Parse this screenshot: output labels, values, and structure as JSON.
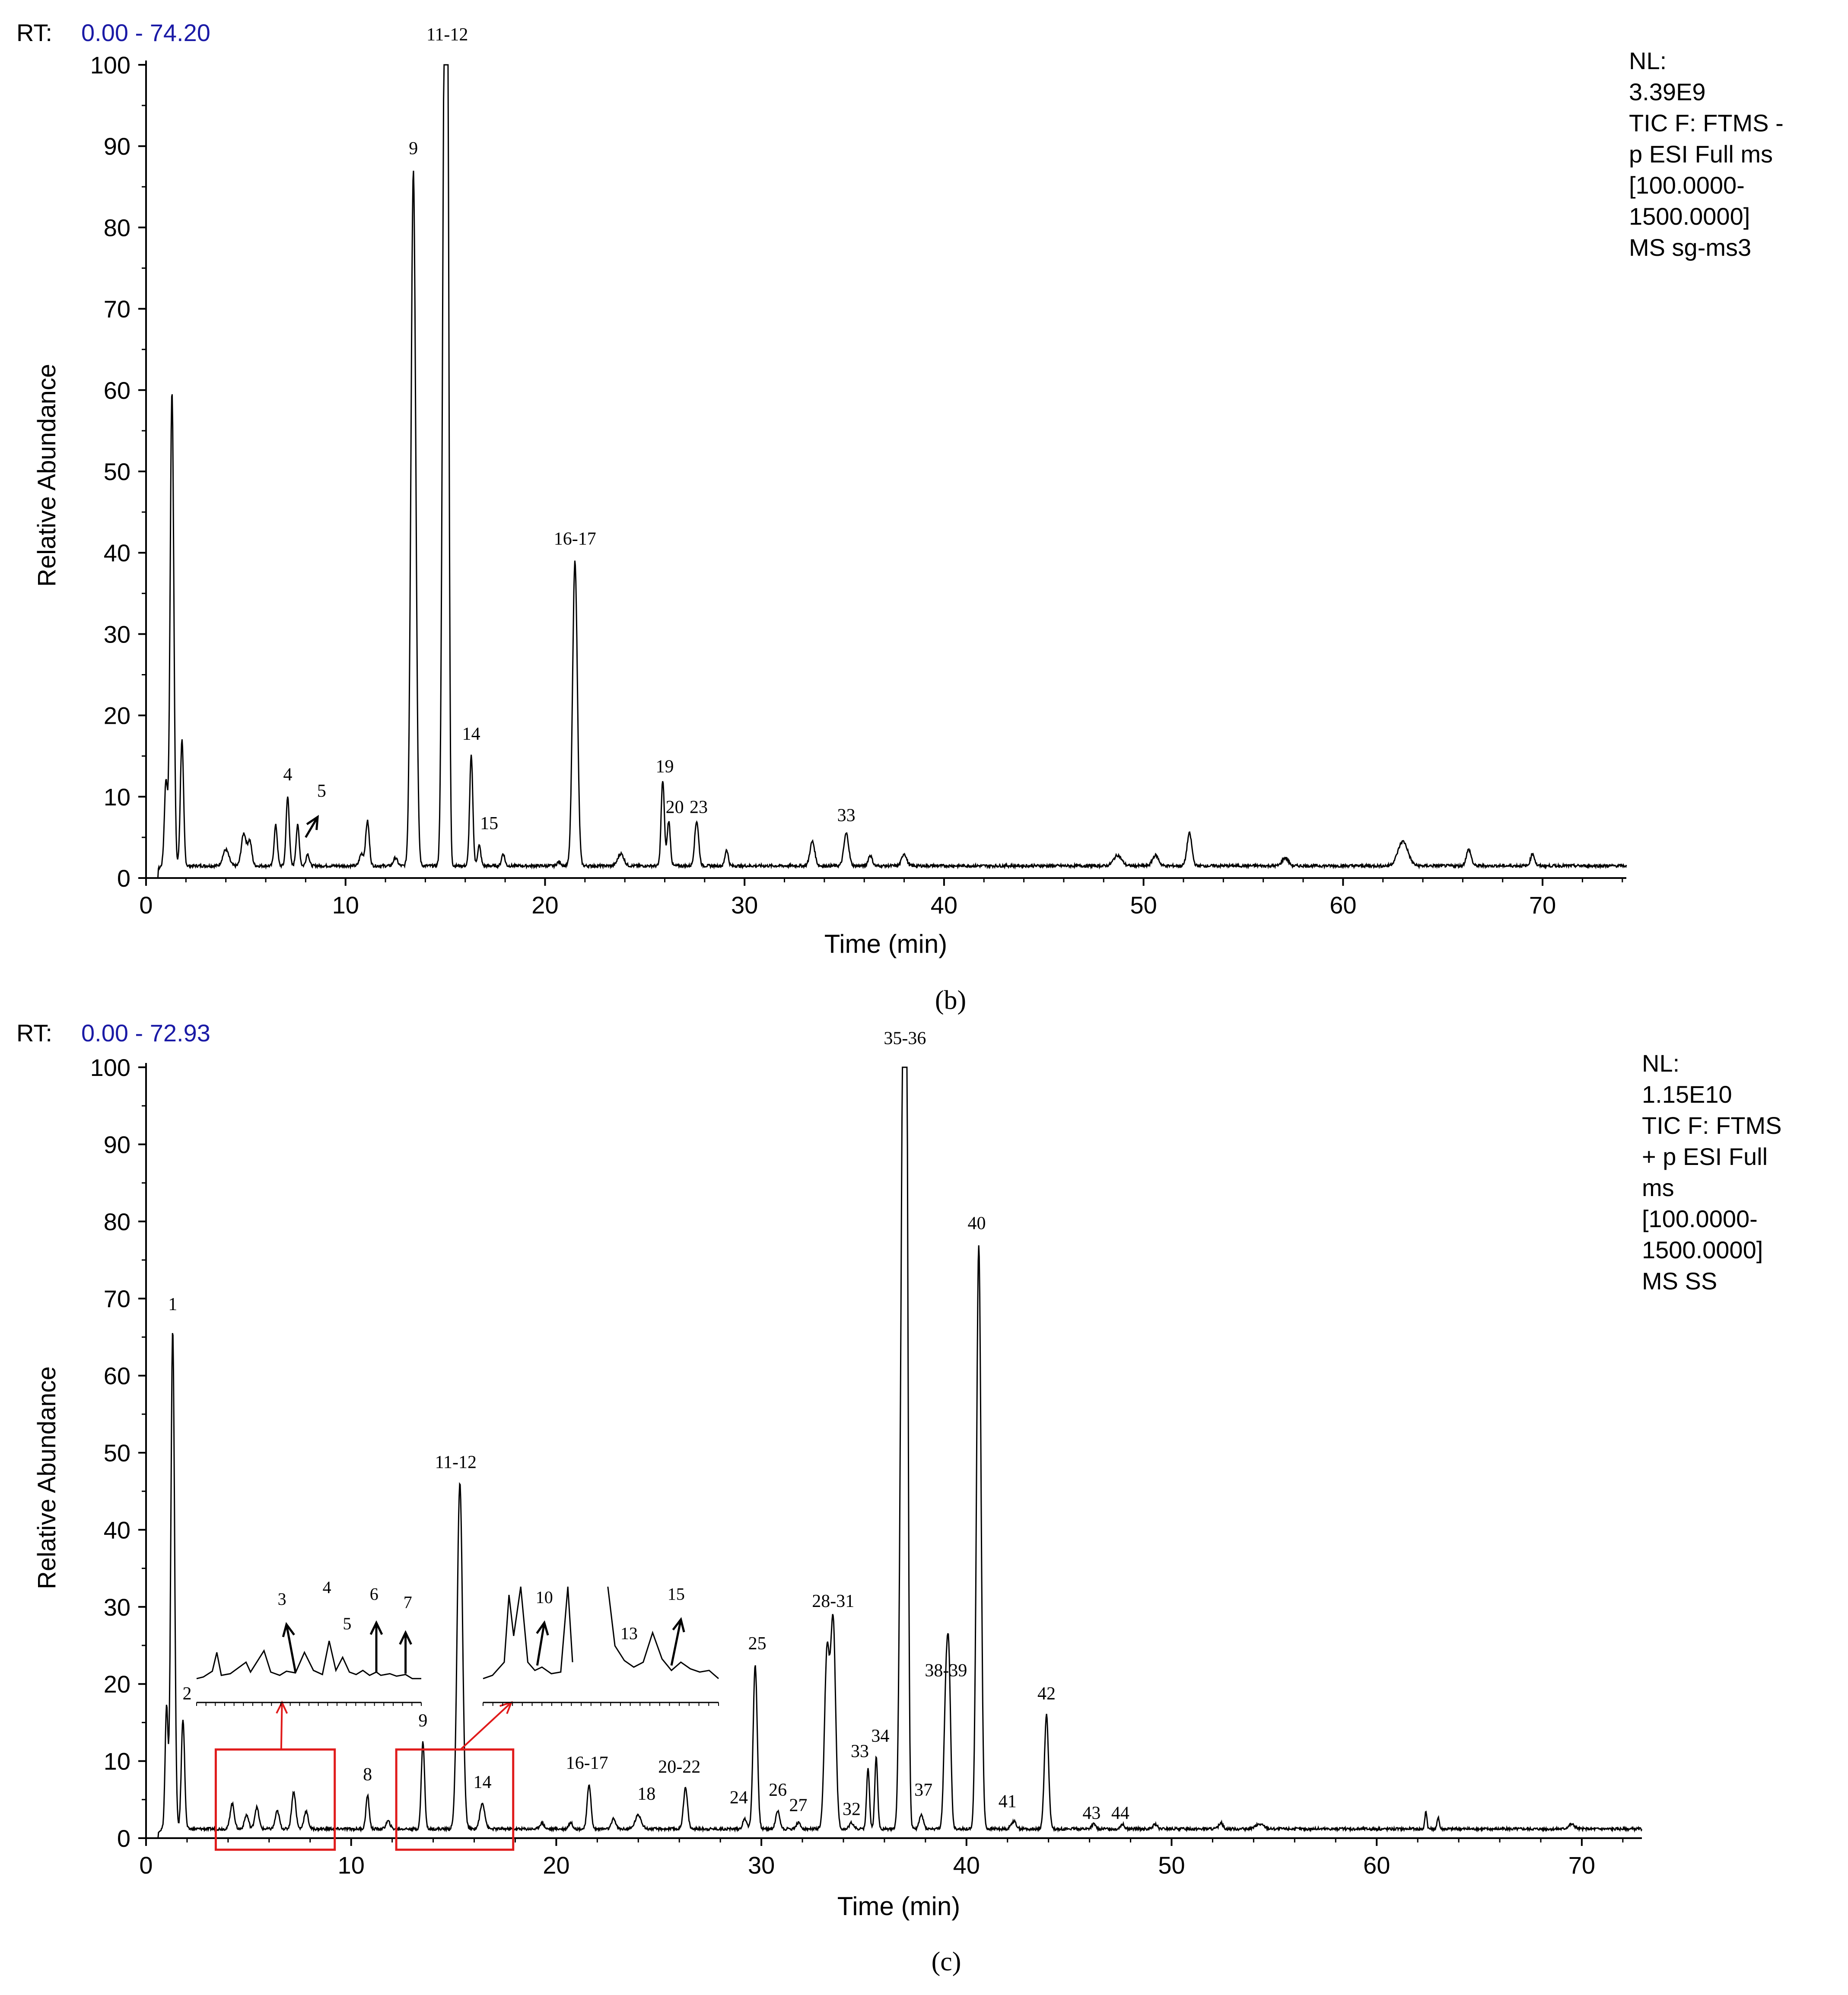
{
  "chart_data": [
    {
      "type": "line",
      "id": "b",
      "rt_label": "RT:",
      "rt_range": "0.00 - 74.20",
      "info_lines": [
        "NL:",
        "3.39E9",
        "TIC F: FTMS -",
        "p ESI Full ms",
        "[100.0000-",
        "1500.0000]",
        "MS sg-ms3"
      ],
      "panel_label": "(b)",
      "xlabel": "Time (min)",
      "ylabel": "Relative Abundance",
      "xlim": [
        0,
        74.2
      ],
      "ylim": [
        0,
        100
      ],
      "xticks": [
        0,
        10,
        20,
        30,
        40,
        50,
        60,
        70
      ],
      "yticks": [
        0,
        10,
        20,
        30,
        40,
        50,
        60,
        70,
        80,
        90,
        100
      ],
      "baseline": 1.5,
      "peaks": [
        {
          "rt": 1.0,
          "h": 12,
          "w": 0.08
        },
        {
          "rt": 1.3,
          "h": 60,
          "w": 0.09
        },
        {
          "rt": 1.8,
          "h": 17,
          "w": 0.08
        },
        {
          "rt": 4.0,
          "h": 3.5,
          "w": 0.15
        },
        {
          "rt": 4.9,
          "h": 5.5,
          "w": 0.12
        },
        {
          "rt": 5.2,
          "h": 4.5,
          "w": 0.1
        },
        {
          "rt": 6.5,
          "h": 6.5,
          "w": 0.08
        },
        {
          "rt": 7.1,
          "h": 10,
          "w": 0.08
        },
        {
          "rt": 7.6,
          "h": 6.5,
          "w": 0.08
        },
        {
          "rt": 8.1,
          "h": 3,
          "w": 0.08
        },
        {
          "rt": 10.8,
          "h": 3,
          "w": 0.1
        },
        {
          "rt": 11.1,
          "h": 7,
          "w": 0.09
        },
        {
          "rt": 12.5,
          "h": 2.5,
          "w": 0.1
        },
        {
          "rt": 13.4,
          "h": 87,
          "w": 0.12
        },
        {
          "rt": 14.95,
          "h": 95,
          "w": 0.1
        },
        {
          "rt": 15.1,
          "h": 100,
          "w": 0.08
        },
        {
          "rt": 16.3,
          "h": 15,
          "w": 0.08
        },
        {
          "rt": 16.7,
          "h": 4,
          "w": 0.08
        },
        {
          "rt": 17.9,
          "h": 3,
          "w": 0.08
        },
        {
          "rt": 20.7,
          "h": 2,
          "w": 0.1
        },
        {
          "rt": 21.5,
          "h": 39,
          "w": 0.12
        },
        {
          "rt": 23.8,
          "h": 3,
          "w": 0.15
        },
        {
          "rt": 25.9,
          "h": 12,
          "w": 0.08
        },
        {
          "rt": 26.2,
          "h": 7,
          "w": 0.08
        },
        {
          "rt": 27.6,
          "h": 7,
          "w": 0.1
        },
        {
          "rt": 29.1,
          "h": 3.5,
          "w": 0.08
        },
        {
          "rt": 33.4,
          "h": 4.5,
          "w": 0.12
        },
        {
          "rt": 35.1,
          "h": 5.5,
          "w": 0.12
        },
        {
          "rt": 36.3,
          "h": 2.8,
          "w": 0.1
        },
        {
          "rt": 38.0,
          "h": 3,
          "w": 0.12
        },
        {
          "rt": 48.7,
          "h": 2.8,
          "w": 0.2
        },
        {
          "rt": 50.6,
          "h": 2.8,
          "w": 0.15
        },
        {
          "rt": 52.3,
          "h": 5.5,
          "w": 0.12
        },
        {
          "rt": 57.1,
          "h": 2.5,
          "w": 0.15
        },
        {
          "rt": 63.0,
          "h": 4.5,
          "w": 0.25
        },
        {
          "rt": 66.3,
          "h": 3.5,
          "w": 0.12
        },
        {
          "rt": 69.5,
          "h": 3,
          "w": 0.1
        }
      ],
      "annotations": [
        {
          "label": "11-12",
          "x": 15.1,
          "y": 103
        },
        {
          "label": "9",
          "x": 13.4,
          "y": 89
        },
        {
          "label": "16-17",
          "x": 21.5,
          "y": 41
        },
        {
          "label": "14",
          "x": 16.3,
          "y": 17
        },
        {
          "label": "4",
          "x": 7.1,
          "y": 12
        },
        {
          "label": "5",
          "x": 8.8,
          "y": 10
        },
        {
          "label": "15",
          "x": 17.2,
          "y": 6
        },
        {
          "label": "19",
          "x": 26.0,
          "y": 13
        },
        {
          "label": "20",
          "x": 26.5,
          "y": 8
        },
        {
          "label": "23",
          "x": 27.7,
          "y": 8
        },
        {
          "label": "33",
          "x": 35.1,
          "y": 7
        }
      ],
      "arrows": [
        {
          "x1": 8.0,
          "y1": 5.0,
          "x2": 8.6,
          "y2": 7.5
        }
      ]
    },
    {
      "type": "line",
      "id": "c",
      "rt_label": "RT:",
      "rt_range": "0.00 - 72.93",
      "info_lines": [
        "NL:",
        "1.15E10",
        "TIC F: FTMS",
        "+ p ESI Full",
        "ms",
        "[100.0000-",
        "1500.0000]",
        "MS SS"
      ],
      "panel_label": "(c)",
      "xlabel": "Time (min)",
      "ylabel": "Relative Abundance",
      "xlim": [
        0,
        72.93
      ],
      "ylim": [
        0,
        100
      ],
      "xticks": [
        0,
        10,
        20,
        30,
        40,
        50,
        60,
        70
      ],
      "yticks": [
        0,
        10,
        20,
        30,
        40,
        50,
        60,
        70,
        80,
        90,
        100
      ],
      "baseline": 1.2,
      "peaks": [
        {
          "rt": 1.0,
          "h": 17,
          "w": 0.07
        },
        {
          "rt": 1.3,
          "h": 66,
          "w": 0.09
        },
        {
          "rt": 1.8,
          "h": 15.5,
          "w": 0.08
        },
        {
          "rt": 4.2,
          "h": 4.5,
          "w": 0.1
        },
        {
          "rt": 4.9,
          "h": 3,
          "w": 0.1
        },
        {
          "rt": 5.4,
          "h": 4,
          "w": 0.1
        },
        {
          "rt": 6.4,
          "h": 3.5,
          "w": 0.1
        },
        {
          "rt": 7.2,
          "h": 6,
          "w": 0.1
        },
        {
          "rt": 7.8,
          "h": 3.5,
          "w": 0.1
        },
        {
          "rt": 10.8,
          "h": 5.5,
          "w": 0.08
        },
        {
          "rt": 11.8,
          "h": 2.2,
          "w": 0.1
        },
        {
          "rt": 13.5,
          "h": 12.5,
          "w": 0.08
        },
        {
          "rt": 15.3,
          "h": 46,
          "w": 0.13
        },
        {
          "rt": 16.4,
          "h": 4.5,
          "w": 0.12
        },
        {
          "rt": 19.3,
          "h": 2,
          "w": 0.1
        },
        {
          "rt": 20.7,
          "h": 2,
          "w": 0.1
        },
        {
          "rt": 21.6,
          "h": 7,
          "w": 0.09
        },
        {
          "rt": 22.8,
          "h": 2.5,
          "w": 0.1
        },
        {
          "rt": 24.0,
          "h": 3,
          "w": 0.15
        },
        {
          "rt": 26.3,
          "h": 6.5,
          "w": 0.1
        },
        {
          "rt": 29.2,
          "h": 2.5,
          "w": 0.1
        },
        {
          "rt": 29.7,
          "h": 22.5,
          "w": 0.1
        },
        {
          "rt": 30.8,
          "h": 3.5,
          "w": 0.1
        },
        {
          "rt": 31.8,
          "h": 2,
          "w": 0.1
        },
        {
          "rt": 33.2,
          "h": 24,
          "w": 0.12
        },
        {
          "rt": 33.5,
          "h": 28,
          "w": 0.12
        },
        {
          "rt": 34.4,
          "h": 2,
          "w": 0.1
        },
        {
          "rt": 35.2,
          "h": 9,
          "w": 0.07
        },
        {
          "rt": 35.6,
          "h": 10.5,
          "w": 0.07
        },
        {
          "rt": 36.9,
          "h": 90,
          "w": 0.12
        },
        {
          "rt": 37.05,
          "h": 100,
          "w": 0.09
        },
        {
          "rt": 37.8,
          "h": 3,
          "w": 0.1
        },
        {
          "rt": 39.0,
          "h": 18,
          "w": 0.1
        },
        {
          "rt": 39.15,
          "h": 19,
          "w": 0.09
        },
        {
          "rt": 40.6,
          "h": 77,
          "w": 0.11
        },
        {
          "rt": 42.3,
          "h": 2.2,
          "w": 0.12
        },
        {
          "rt": 43.9,
          "h": 16,
          "w": 0.1
        },
        {
          "rt": 46.2,
          "h": 1.8,
          "w": 0.1
        },
        {
          "rt": 47.6,
          "h": 1.8,
          "w": 0.1
        },
        {
          "rt": 49.2,
          "h": 1.8,
          "w": 0.1
        },
        {
          "rt": 52.4,
          "h": 2,
          "w": 0.1
        },
        {
          "rt": 54.3,
          "h": 1.8,
          "w": 0.2
        },
        {
          "rt": 62.4,
          "h": 3.5,
          "w": 0.05
        },
        {
          "rt": 63.0,
          "h": 2.8,
          "w": 0.05
        },
        {
          "rt": 69.5,
          "h": 1.8,
          "w": 0.15
        }
      ],
      "annotations": [
        {
          "label": "35-36",
          "x": 37.0,
          "y": 103
        },
        {
          "label": "40",
          "x": 40.5,
          "y": 79
        },
        {
          "label": "1",
          "x": 1.3,
          "y": 68.5
        },
        {
          "label": "11-12",
          "x": 15.1,
          "y": 48
        },
        {
          "label": "28-31",
          "x": 33.5,
          "y": 30
        },
        {
          "label": "25",
          "x": 29.8,
          "y": 24.5
        },
        {
          "label": "38-39",
          "x": 39.0,
          "y": 21
        },
        {
          "label": "2",
          "x": 2.0,
          "y": 18
        },
        {
          "label": "42",
          "x": 43.9,
          "y": 18
        },
        {
          "label": "9",
          "x": 13.5,
          "y": 14.5
        },
        {
          "label": "34",
          "x": 35.8,
          "y": 12.5
        },
        {
          "label": "33",
          "x": 34.8,
          "y": 10.5
        },
        {
          "label": "8",
          "x": 10.8,
          "y": 7.5
        },
        {
          "label": "16-17",
          "x": 21.5,
          "y": 9
        },
        {
          "label": "20-22",
          "x": 26.0,
          "y": 8.5
        },
        {
          "label": "14",
          "x": 16.4,
          "y": 6.5
        },
        {
          "label": "18",
          "x": 24.4,
          "y": 5
        },
        {
          "label": "26",
          "x": 30.8,
          "y": 5.5
        },
        {
          "label": "24",
          "x": 28.9,
          "y": 4.5
        },
        {
          "label": "37",
          "x": 37.9,
          "y": 5.5
        },
        {
          "label": "41",
          "x": 42.0,
          "y": 4
        },
        {
          "label": "27",
          "x": 31.8,
          "y": 3.5
        },
        {
          "label": "32",
          "x": 34.4,
          "y": 3
        },
        {
          "label": "43",
          "x": 46.1,
          "y": 2.5
        },
        {
          "label": "44",
          "x": 47.5,
          "y": 2.5
        }
      ],
      "zoom_boxes": [
        {
          "x0": 3.4,
          "x1": 9.2,
          "y0": -1.5,
          "y1": 11.5
        },
        {
          "x0": 12.2,
          "x1": 17.9,
          "y0": -1.5,
          "y1": 11.5
        }
      ],
      "insets": [
        {
          "id": "inset-1",
          "points": [
            [
              0,
              4
            ],
            [
              0.03,
              5
            ],
            [
              0.07,
              8.5
            ],
            [
              0.09,
              20
            ],
            [
              0.11,
              6
            ],
            [
              0.15,
              7
            ],
            [
              0.22,
              14
            ],
            [
              0.24,
              8
            ],
            [
              0.3,
              21
            ],
            [
              0.33,
              8
            ],
            [
              0.37,
              6
            ],
            [
              0.4,
              8.5
            ],
            [
              0.44,
              7.5
            ],
            [
              0.48,
              20
            ],
            [
              0.52,
              9
            ],
            [
              0.56,
              6.5
            ],
            [
              0.59,
              27
            ],
            [
              0.62,
              9
            ],
            [
              0.65,
              17
            ],
            [
              0.68,
              8
            ],
            [
              0.71,
              6.5
            ],
            [
              0.74,
              9
            ],
            [
              0.77,
              6
            ],
            [
              0.8,
              8
            ],
            [
              0.82,
              6
            ],
            [
              0.86,
              7
            ],
            [
              0.89,
              5.5
            ],
            [
              0.93,
              6.5
            ],
            [
              0.96,
              4
            ],
            [
              1.0,
              4
            ]
          ],
          "labels": [
            {
              "label": "3",
              "x": 0.38,
              "y": 49
            },
            {
              "label": "4",
              "x": 0.58,
              "y": 56
            },
            {
              "label": "5",
              "x": 0.67,
              "y": 34
            },
            {
              "label": "6",
              "x": 0.79,
              "y": 52
            },
            {
              "label": "7",
              "x": 0.94,
              "y": 47
            }
          ],
          "arrows": [
            {
              "x1": 0.44,
              "y1": 8,
              "x2": 0.4,
              "y2": 37
            },
            {
              "x1": 0.8,
              "y1": 8,
              "x2": 0.8,
              "y2": 38
            },
            {
              "x1": 0.93,
              "y1": 7,
              "x2": 0.93,
              "y2": 32
            }
          ]
        },
        {
          "id": "inset-2",
          "points": [
            [
              0,
              4
            ],
            [
              0.04,
              6
            ],
            [
              0.09,
              14
            ],
            [
              0.11,
              55
            ],
            [
              0.13,
              30
            ],
            [
              0.16,
              60
            ],
            [
              0.19,
              14
            ],
            [
              0.22,
              9
            ],
            [
              0.25,
              11
            ],
            [
              0.29,
              7
            ],
            [
              0.33,
              8
            ],
            [
              0.36,
              60
            ],
            [
              0.38,
              14
            ],
            [
              0.4,
              null
            ],
            [
              0.53,
              60
            ],
            [
              0.56,
              24
            ],
            [
              0.6,
              15
            ],
            [
              0.64,
              11
            ],
            [
              0.68,
              14
            ],
            [
              0.72,
              32
            ],
            [
              0.76,
              16
            ],
            [
              0.8,
              9
            ],
            [
              0.84,
              14
            ],
            [
              0.88,
              10
            ],
            [
              0.92,
              8
            ],
            [
              0.96,
              9
            ],
            [
              1.0,
              4
            ]
          ],
          "labels": [
            {
              "label": "10",
              "x": 0.26,
              "y": 50
            },
            {
              "label": "13",
              "x": 0.62,
              "y": 28
            },
            {
              "label": "15",
              "x": 0.82,
              "y": 52
            }
          ],
          "arrows": [
            {
              "x1": 0.23,
              "y1": 12,
              "x2": 0.26,
              "y2": 38
            },
            {
              "x1": 0.8,
              "y1": 12,
              "x2": 0.84,
              "y2": 40
            }
          ]
        }
      ]
    }
  ]
}
